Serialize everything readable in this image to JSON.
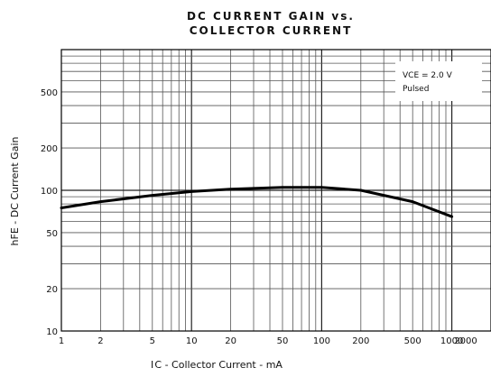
{
  "chart_data": {
    "type": "line",
    "title": "DC CURRENT GAIN vs.",
    "subtitle": "COLLECTOR CURRENT",
    "xlabel": "I C - Collector Current - mA",
    "ylabel": "hFE - DC Current Gain",
    "x_scale": "log",
    "y_scale": "log",
    "xlim": [
      1,
      2000
    ],
    "ylim": [
      10,
      1000
    ],
    "grid": true,
    "x_ticks": [
      {
        "value": 1,
        "label": "1"
      },
      {
        "value": 2,
        "label": "2"
      },
      {
        "value": 5,
        "label": "5"
      },
      {
        "value": 10,
        "label": "10"
      },
      {
        "value": 20,
        "label": "20"
      },
      {
        "value": 50,
        "label": "50"
      },
      {
        "value": 100,
        "label": "100"
      },
      {
        "value": 200,
        "label": "200"
      },
      {
        "value": 500,
        "label": "500"
      },
      {
        "value": 1000,
        "label": "1000"
      },
      {
        "value": 2000,
        "label": "2000"
      }
    ],
    "y_ticks": [
      {
        "value": 10,
        "label": "10"
      },
      {
        "value": 20,
        "label": "20"
      },
      {
        "value": 50,
        "label": "50"
      },
      {
        "value": 100,
        "label": "100"
      },
      {
        "value": 200,
        "label": "200"
      },
      {
        "value": 500,
        "label": "500"
      }
    ],
    "annotation": {
      "line1": "VCE = 2.0 V",
      "line2": "Pulsed",
      "position": "top-right"
    },
    "series": [
      {
        "color": "#000000",
        "x": [
          1,
          2,
          5,
          10,
          20,
          50,
          100,
          200,
          500,
          1000
        ],
        "y": [
          75,
          83,
          92,
          98,
          102,
          105,
          105,
          100,
          83,
          65
        ]
      }
    ]
  }
}
